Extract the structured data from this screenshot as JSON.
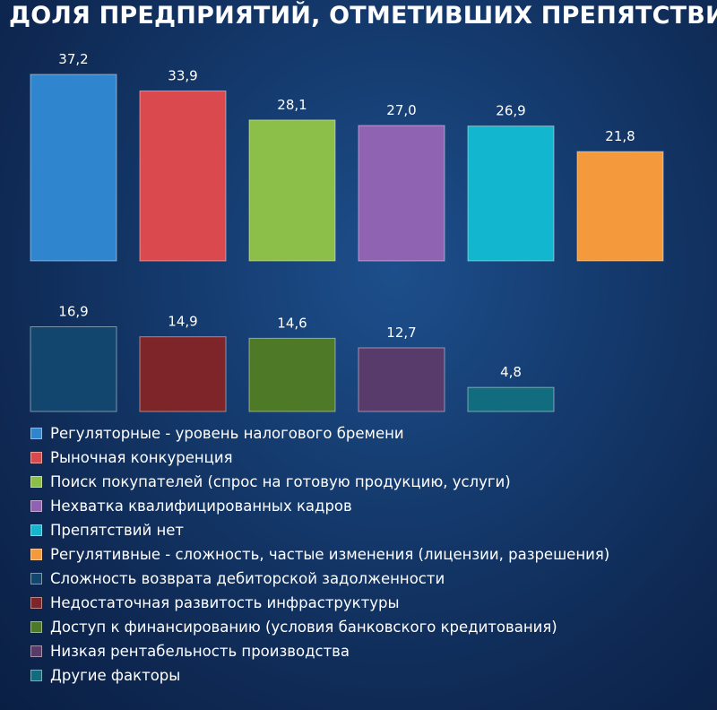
{
  "chart_data": {
    "type": "bar",
    "title": "ДОЛЯ ПРЕДПРИЯТИЙ, ОТМЕТИВШИХ ПРЕПЯТСТВИЯ",
    "xlabel": "",
    "ylabel": "",
    "grid": false,
    "legend_position": "bottom",
    "series": [
      {
        "name": "Регуляторные - уровень налогового бремени",
        "value": 37.2,
        "label": "37,2",
        "color": "#2f86cf",
        "row": 1
      },
      {
        "name": "Рыночная конкуренция",
        "value": 33.9,
        "label": "33,9",
        "color": "#d9494d",
        "row": 1
      },
      {
        "name": "Поиск покупателей (спрос на готовую продукцию, услуги)",
        "value": 28.1,
        "label": "28,1",
        "color": "#8cbe4a",
        "row": 1
      },
      {
        "name": "Нехватка квалифицированных кадров",
        "value": 27.0,
        "label": "27,0",
        "color": "#8f62b2",
        "row": 1
      },
      {
        "name": "Препятствий нет",
        "value": 26.9,
        "label": "26,9",
        "color": "#12b6cf",
        "row": 1
      },
      {
        "name": "Регулятивные - сложность, частые изменения (лицензии, разрешения)",
        "value": 21.8,
        "label": "21,8",
        "color": "#f59a3c",
        "row": 1
      },
      {
        "name": "Сложность возврата дебиторской задолженности",
        "value": 16.9,
        "label": "16,9",
        "color": "#13466e",
        "row": 2
      },
      {
        "name": "Недостаточная развитость инфраструктуры",
        "value": 14.9,
        "label": "14,9",
        "color": "#7d2528",
        "row": 2
      },
      {
        "name": "Доступ к финансированию (условия банковского кредитования)",
        "value": 14.6,
        "label": "14,6",
        "color": "#4e7a28",
        "row": 2
      },
      {
        "name": "Низкая рентабельность производства",
        "value": 12.7,
        "label": "12,7",
        "color": "#583b6a",
        "row": 2
      },
      {
        "name": "Другие факторы",
        "value": 4.8,
        "label": "4,8",
        "color": "#116c80",
        "row": 2
      }
    ]
  }
}
